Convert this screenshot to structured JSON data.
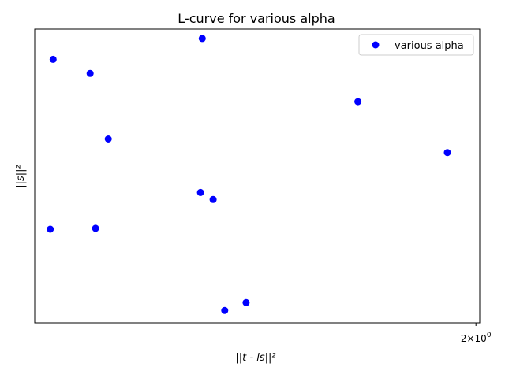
{
  "chart_data": {
    "type": "scatter",
    "title": "L-curve for various alpha",
    "xlabel": "||t - ls||²",
    "ylabel": "||s||²",
    "x_scale": "log",
    "y_scale": "log",
    "xlim": [
      1.4525,
      2.0055
    ],
    "ylim": [
      0.0,
      1.0
    ],
    "xticks": [
      {
        "value": 2.0,
        "base": "2",
        "mult": "×",
        "ten": "10",
        "exp": "0"
      }
    ],
    "yticks": [],
    "grid": false,
    "legend": {
      "placement": "top-right",
      "entries": [
        "various alpha"
      ]
    },
    "colors": {
      "series": "#0000ff"
    },
    "series": [
      {
        "name": "various alpha",
        "marker": "circle",
        "points": [
          {
            "x": 1.64,
            "y": 0.968
          },
          {
            "x": 1.472,
            "y": 0.897
          },
          {
            "x": 1.512,
            "y": 0.849
          },
          {
            "x": 1.836,
            "y": 0.753
          },
          {
            "x": 1.532,
            "y": 0.626
          },
          {
            "x": 1.959,
            "y": 0.58
          },
          {
            "x": 1.638,
            "y": 0.444
          },
          {
            "x": 1.653,
            "y": 0.42
          },
          {
            "x": 1.469,
            "y": 0.319
          },
          {
            "x": 1.518,
            "y": 0.322
          },
          {
            "x": 1.693,
            "y": 0.069
          },
          {
            "x": 1.667,
            "y": 0.042
          }
        ]
      }
    ]
  }
}
